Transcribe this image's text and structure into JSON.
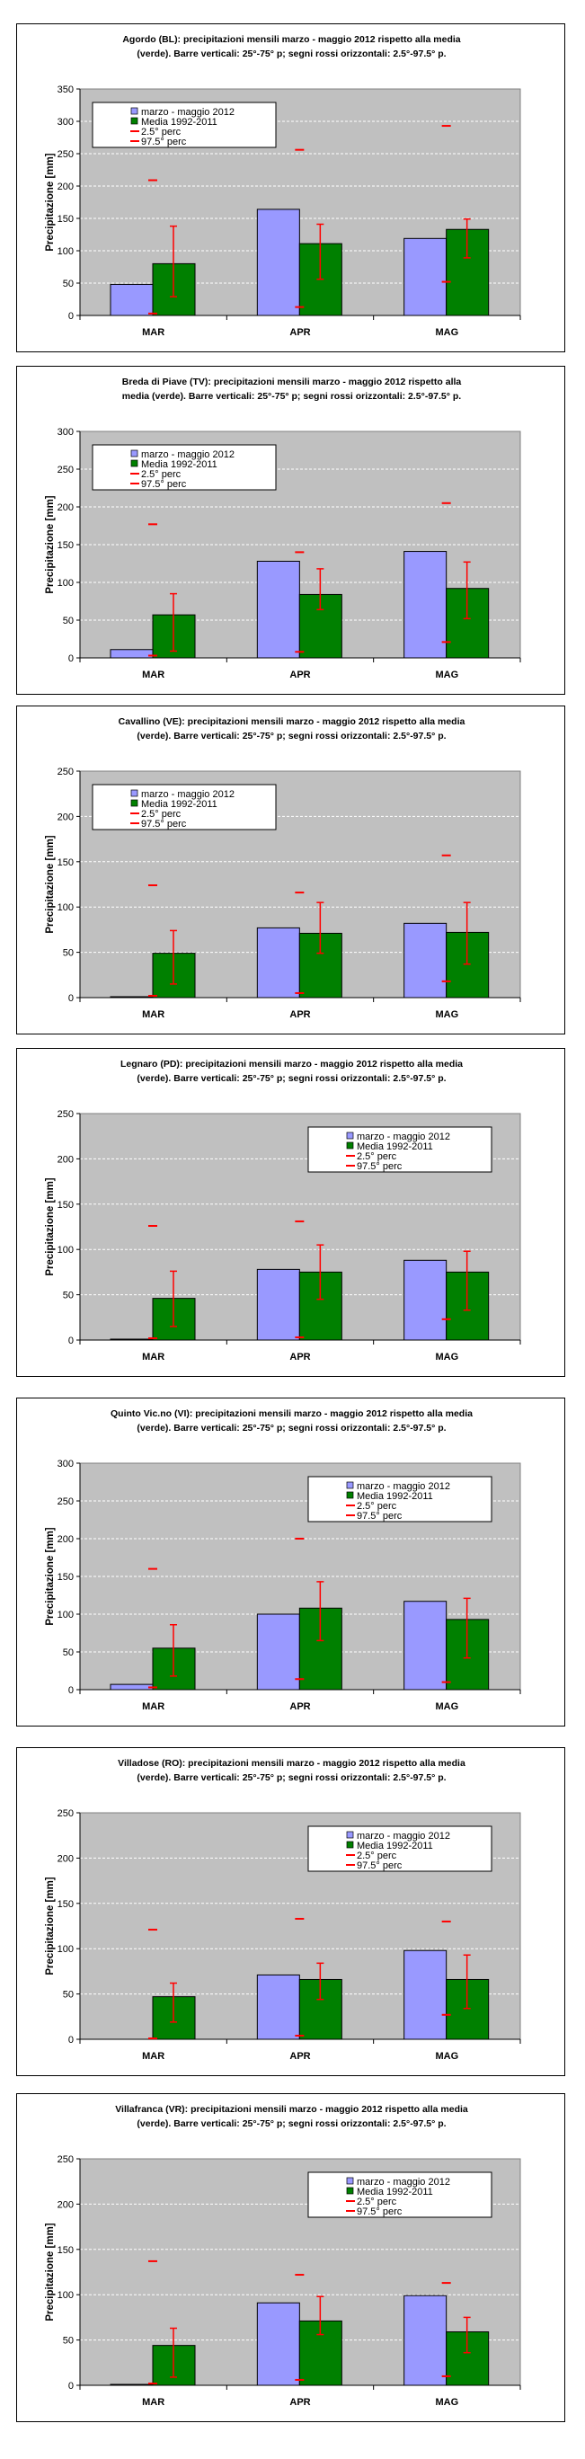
{
  "chart_data": [
    {
      "type": "bar",
      "title_lines": [
        "Agordo (BL): precipitazioni mensili marzo - maggio 2012 rispetto alla media",
        "(verde).  Barre verticali: 25°-75° p; segni rossi orizzontali: 2.5°-97.5° p."
      ],
      "ylabel": "Precipitazione [mm]",
      "ylim": [
        0,
        350
      ],
      "categories": [
        "MAR",
        "APR",
        "MAG"
      ],
      "legend_position": "top-left",
      "series": [
        {
          "name": "marzo - maggio 2012",
          "values": [
            48,
            164,
            119
          ]
        },
        {
          "name": "Media 1992-2011",
          "values": [
            80,
            111,
            133
          ]
        }
      ],
      "p25_p75": [
        [
          29,
          138
        ],
        [
          56,
          141
        ],
        [
          89,
          149
        ]
      ],
      "p2_5": [
        3,
        13,
        52
      ],
      "p97_5": [
        209,
        256,
        293
      ]
    },
    {
      "type": "bar",
      "title_lines": [
        "Breda di Piave (TV): precipitazioni mensili marzo - maggio 2012 rispetto alla",
        "media (verde).  Barre verticali: 25°-75° p; segni rossi orizzontali: 2.5°-97.5° p."
      ],
      "ylabel": "Precipitazione [mm]",
      "ylim": [
        0,
        300
      ],
      "categories": [
        "MAR",
        "APR",
        "MAG"
      ],
      "legend_position": "top-left",
      "series": [
        {
          "name": "marzo - maggio 2012",
          "values": [
            11,
            128,
            141
          ]
        },
        {
          "name": "Media 1992-2011",
          "values": [
            57,
            84,
            92
          ]
        }
      ],
      "p25_p75": [
        [
          9,
          85
        ],
        [
          64,
          118
        ],
        [
          52,
          127
        ]
      ],
      "p2_5": [
        3,
        8,
        21
      ],
      "p97_5": [
        177,
        140,
        205
      ]
    },
    {
      "type": "bar",
      "title_lines": [
        "Cavallino (VE): precipitazioni mensili marzo - maggio 2012 rispetto alla media",
        "(verde).  Barre verticali: 25°-75° p; segni rossi orizzontali: 2.5°-97.5° p."
      ],
      "ylabel": "Precipitazione [mm]",
      "ylim": [
        0,
        250
      ],
      "categories": [
        "MAR",
        "APR",
        "MAG"
      ],
      "legend_position": "top-left",
      "series": [
        {
          "name": "marzo - maggio 2012",
          "values": [
            1,
            77,
            82
          ]
        },
        {
          "name": "Media 1992-2011",
          "values": [
            49,
            71,
            72
          ]
        }
      ],
      "p25_p75": [
        [
          15,
          74
        ],
        [
          49,
          105
        ],
        [
          37,
          105
        ]
      ],
      "p2_5": [
        2,
        5,
        18
      ],
      "p97_5": [
        124,
        116,
        157
      ]
    },
    {
      "type": "bar",
      "title_lines": [
        "Legnaro (PD): precipitazioni mensili marzo - maggio 2012 rispetto alla media",
        "(verde).  Barre verticali: 25°-75° p; segni rossi orizzontali: 2.5°-97.5° p."
      ],
      "ylabel": "Precipitazione [mm]",
      "ylim": [
        0,
        250
      ],
      "categories": [
        "MAR",
        "APR",
        "MAG"
      ],
      "legend_position": "top-right",
      "series": [
        {
          "name": "marzo - maggio 2012",
          "values": [
            1,
            78,
            88
          ]
        },
        {
          "name": "Media 1992-2011",
          "values": [
            46,
            75,
            75
          ]
        }
      ],
      "p25_p75": [
        [
          15,
          76
        ],
        [
          45,
          105
        ],
        [
          33,
          98
        ]
      ],
      "p2_5": [
        2,
        3,
        23
      ],
      "p97_5": [
        126,
        131,
        null
      ]
    },
    {
      "type": "bar",
      "title_lines": [
        "Quinto Vic.no (VI): precipitazioni mensili marzo - maggio 2012 rispetto alla media",
        "(verde).  Barre verticali: 25°-75° p; segni rossi orizzontali: 2.5°-97.5° p."
      ],
      "ylabel": "Precipitazione [mm]",
      "ylim": [
        0,
        300
      ],
      "categories": [
        "MAR",
        "APR",
        "MAG"
      ],
      "legend_position": "top-right",
      "series": [
        {
          "name": "marzo - maggio 2012",
          "values": [
            7,
            100,
            117
          ]
        },
        {
          "name": "Media 1992-2011",
          "values": [
            55,
            108,
            93
          ]
        }
      ],
      "p25_p75": [
        [
          18,
          86
        ],
        [
          65,
          143
        ],
        [
          42,
          121
        ]
      ],
      "p2_5": [
        3,
        14,
        10
      ],
      "p97_5": [
        160,
        200,
        null
      ]
    },
    {
      "type": "bar",
      "title_lines": [
        "Villadose (RO): precipitazioni mensili marzo - maggio 2012 rispetto alla media",
        "(verde).  Barre verticali: 25°-75° p; segni rossi orizzontali: 2.5°-97.5° p."
      ],
      "ylabel": "Precipitazione [mm]",
      "ylim": [
        0,
        250
      ],
      "categories": [
        "MAR",
        "APR",
        "MAG"
      ],
      "legend_position": "top-right",
      "series": [
        {
          "name": "marzo - maggio 2012",
          "values": [
            0,
            71,
            98
          ]
        },
        {
          "name": "Media 1992-2011",
          "values": [
            47,
            66,
            66
          ]
        }
      ],
      "p25_p75": [
        [
          19,
          62
        ],
        [
          44,
          84
        ],
        [
          34,
          93
        ]
      ],
      "p2_5": [
        1,
        4,
        27
      ],
      "p97_5": [
        121,
        133,
        130
      ]
    },
    {
      "type": "bar",
      "title_lines": [
        "Villafranca (VR): precipitazioni mensili marzo - maggio 2012 rispetto alla media",
        "(verde).  Barre verticali: 25°-75° p; segni rossi orizzontali: 2.5°-97.5° p."
      ],
      "ylabel": "Precipitazione [mm]",
      "ylim": [
        0,
        250
      ],
      "categories": [
        "MAR",
        "APR",
        "MAG"
      ],
      "legend_position": "top-right",
      "series": [
        {
          "name": "marzo - maggio 2012",
          "values": [
            1,
            91,
            99
          ]
        },
        {
          "name": "Media 1992-2011",
          "values": [
            44,
            71,
            59
          ]
        }
      ],
      "p25_p75": [
        [
          9,
          63
        ],
        [
          56,
          98
        ],
        [
          36,
          75
        ]
      ],
      "p2_5": [
        2,
        6,
        10
      ],
      "p97_5": [
        137,
        122,
        113
      ]
    }
  ],
  "legend_labels": [
    "marzo - maggio 2012",
    "Media 1992-2011",
    "2.5° perc",
    "97.5° perc"
  ],
  "colors": {
    "current": "#9999ff",
    "mean": "#008000",
    "perc": "#ff0000",
    "plot_bg": "#c0c0c0"
  }
}
